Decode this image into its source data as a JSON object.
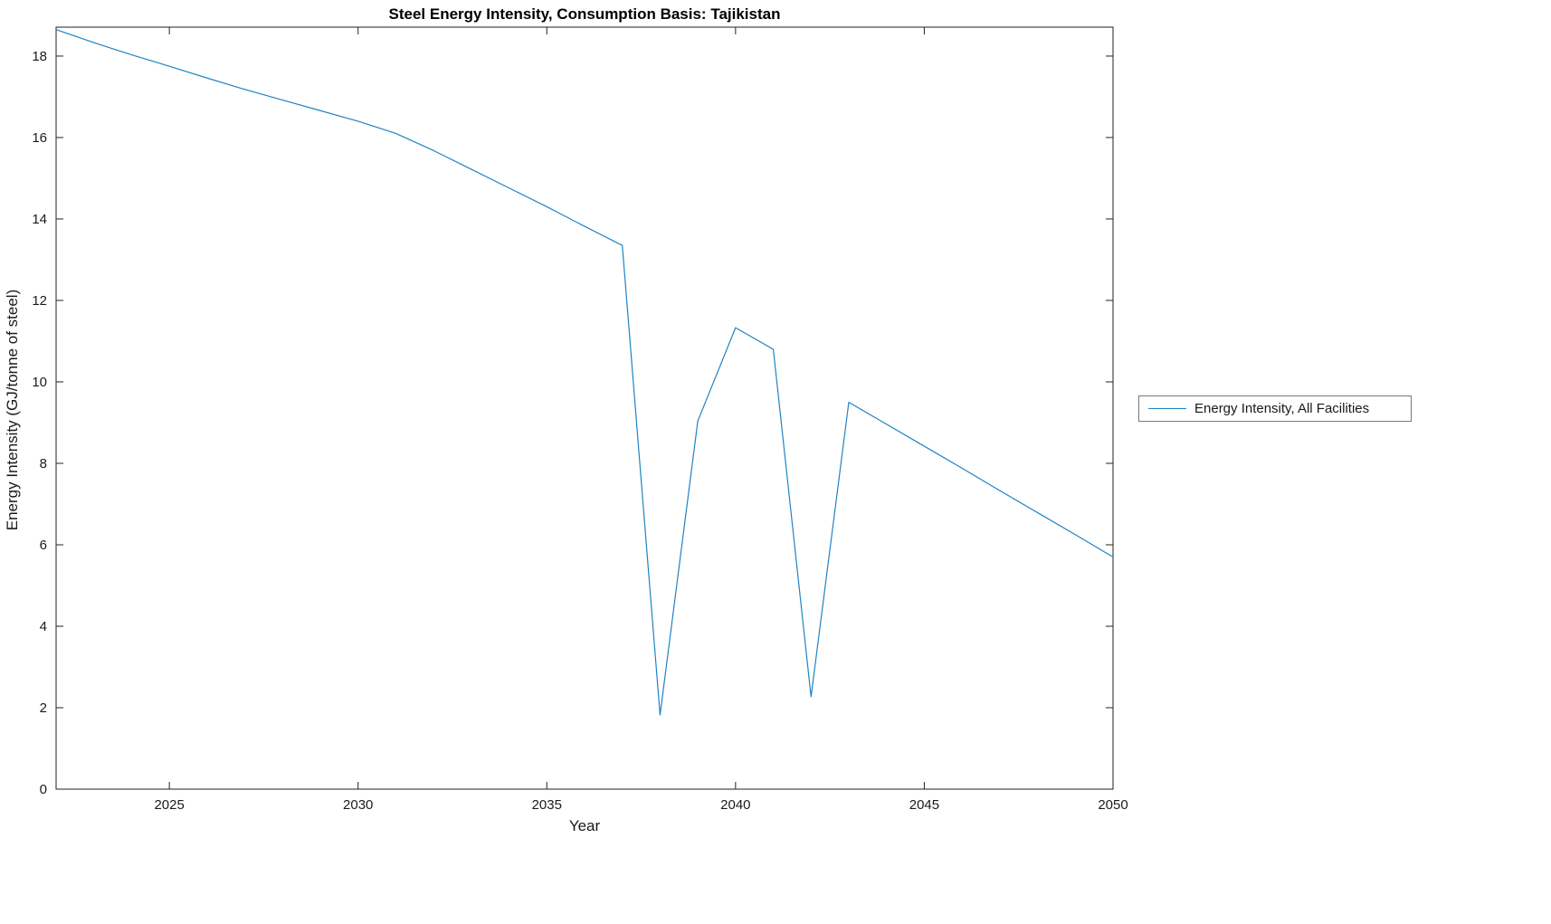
{
  "chart_data": {
    "type": "line",
    "title": "Steel Energy Intensity, Consumption Basis: Tajikistan",
    "xlabel": "Year",
    "ylabel": "Energy Intensity (GJ/tonne of steel)",
    "series_label": "Energy Intensity, All Facilities",
    "line_color": "#1f83c4",
    "axis_color": "#222222",
    "xlim": [
      2022,
      2050
    ],
    "ylim": [
      0,
      18.71
    ],
    "xticks": [
      2025,
      2030,
      2035,
      2040,
      2045,
      2050
    ],
    "yticks": [
      0,
      2,
      4,
      6,
      8,
      10,
      12,
      14,
      16,
      18
    ],
    "legend_position": "right-outside",
    "grid": false,
    "x": [
      2022,
      2023,
      2024,
      2025,
      2026,
      2027,
      2028,
      2029,
      2030,
      2031,
      2032,
      2033,
      2034,
      2035,
      2036,
      2037,
      2038,
      2039,
      2040,
      2041,
      2042,
      2043,
      2044,
      2045,
      2046,
      2047,
      2048,
      2049,
      2050
    ],
    "values": [
      18.65,
      18.33,
      18.03,
      17.75,
      17.46,
      17.18,
      16.92,
      16.66,
      16.4,
      16.1,
      15.68,
      15.22,
      14.76,
      14.3,
      13.82,
      13.35,
      1.82,
      9.04,
      11.33,
      10.8,
      2.27,
      9.5,
      8.96,
      8.42,
      7.88,
      7.33,
      6.79,
      6.25,
      5.7
    ]
  }
}
